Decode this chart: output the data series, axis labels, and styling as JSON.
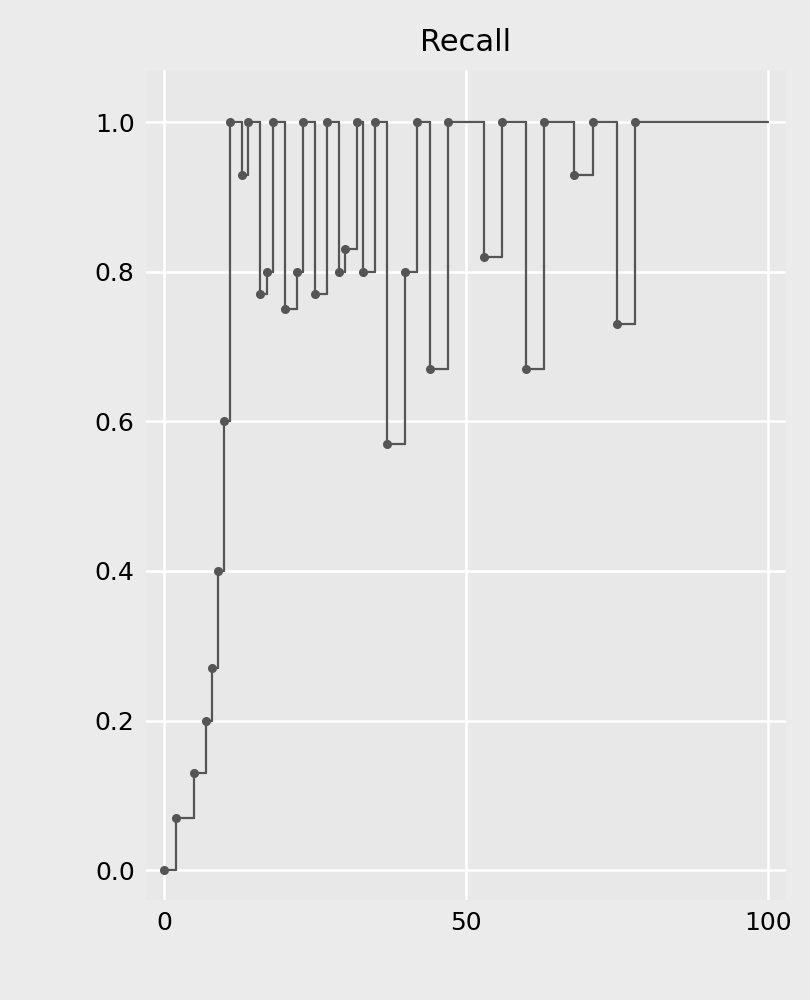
{
  "title": "Recall",
  "title_fontsize": 22,
  "xlim": [
    -3,
    103
  ],
  "ylim": [
    -0.04,
    1.07
  ],
  "xticks": [
    0,
    50,
    100
  ],
  "yticks": [
    0.0,
    0.2,
    0.4,
    0.6,
    0.8,
    1.0
  ],
  "plot_bg_color": "#e8e8e8",
  "fig_bg_color": "#ebebeb",
  "line_color": "#555555",
  "marker_color": "#555555",
  "grid_color": "#ffffff",
  "tick_label_fontsize": 18,
  "segments": [
    {
      "x": [
        0,
        2
      ],
      "y": [
        0.0,
        0.0
      ]
    },
    {
      "x": [
        2,
        2
      ],
      "y": [
        0.0,
        0.07
      ]
    },
    {
      "x": [
        2,
        5
      ],
      "y": [
        0.07,
        0.07
      ]
    },
    {
      "x": [
        5,
        5
      ],
      "y": [
        0.07,
        0.13
      ]
    },
    {
      "x": [
        5,
        7
      ],
      "y": [
        0.13,
        0.13
      ]
    },
    {
      "x": [
        7,
        7
      ],
      "y": [
        0.13,
        0.2
      ]
    },
    {
      "x": [
        7,
        8
      ],
      "y": [
        0.2,
        0.2
      ]
    },
    {
      "x": [
        8,
        8
      ],
      "y": [
        0.2,
        0.27
      ]
    },
    {
      "x": [
        8,
        9
      ],
      "y": [
        0.27,
        0.27
      ]
    },
    {
      "x": [
        9,
        9
      ],
      "y": [
        0.27,
        0.4
      ]
    },
    {
      "x": [
        9,
        10
      ],
      "y": [
        0.4,
        0.4
      ]
    },
    {
      "x": [
        10,
        10
      ],
      "y": [
        0.4,
        0.6
      ]
    },
    {
      "x": [
        10,
        11
      ],
      "y": [
        0.6,
        0.6
      ]
    },
    {
      "x": [
        11,
        11
      ],
      "y": [
        0.6,
        1.0
      ]
    },
    {
      "x": [
        11,
        13
      ],
      "y": [
        1.0,
        1.0
      ]
    },
    {
      "x": [
        13,
        13
      ],
      "y": [
        1.0,
        0.93
      ]
    },
    {
      "x": [
        13,
        14
      ],
      "y": [
        0.93,
        0.93
      ]
    },
    {
      "x": [
        14,
        14
      ],
      "y": [
        0.93,
        1.0
      ]
    },
    {
      "x": [
        14,
        16
      ],
      "y": [
        1.0,
        1.0
      ]
    },
    {
      "x": [
        16,
        16
      ],
      "y": [
        1.0,
        0.77
      ]
    },
    {
      "x": [
        16,
        17
      ],
      "y": [
        0.77,
        0.77
      ]
    },
    {
      "x": [
        17,
        17
      ],
      "y": [
        0.77,
        0.8
      ]
    },
    {
      "x": [
        17,
        18
      ],
      "y": [
        0.8,
        0.8
      ]
    },
    {
      "x": [
        18,
        18
      ],
      "y": [
        0.8,
        1.0
      ]
    },
    {
      "x": [
        18,
        20
      ],
      "y": [
        1.0,
        1.0
      ]
    },
    {
      "x": [
        20,
        20
      ],
      "y": [
        1.0,
        0.75
      ]
    },
    {
      "x": [
        20,
        22
      ],
      "y": [
        0.75,
        0.75
      ]
    },
    {
      "x": [
        22,
        22
      ],
      "y": [
        0.75,
        0.8
      ]
    },
    {
      "x": [
        22,
        23
      ],
      "y": [
        0.8,
        0.8
      ]
    },
    {
      "x": [
        23,
        23
      ],
      "y": [
        0.8,
        1.0
      ]
    },
    {
      "x": [
        23,
        25
      ],
      "y": [
        1.0,
        1.0
      ]
    },
    {
      "x": [
        25,
        25
      ],
      "y": [
        1.0,
        0.77
      ]
    },
    {
      "x": [
        25,
        27
      ],
      "y": [
        0.77,
        0.77
      ]
    },
    {
      "x": [
        27,
        27
      ],
      "y": [
        0.77,
        1.0
      ]
    },
    {
      "x": [
        27,
        29
      ],
      "y": [
        1.0,
        1.0
      ]
    },
    {
      "x": [
        29,
        29
      ],
      "y": [
        1.0,
        0.8
      ]
    },
    {
      "x": [
        29,
        30
      ],
      "y": [
        0.8,
        0.8
      ]
    },
    {
      "x": [
        30,
        30
      ],
      "y": [
        0.8,
        0.83
      ]
    },
    {
      "x": [
        30,
        32
      ],
      "y": [
        0.83,
        0.83
      ]
    },
    {
      "x": [
        32,
        32
      ],
      "y": [
        0.83,
        1.0
      ]
    },
    {
      "x": [
        32,
        33
      ],
      "y": [
        1.0,
        1.0
      ]
    },
    {
      "x": [
        33,
        33
      ],
      "y": [
        1.0,
        0.8
      ]
    },
    {
      "x": [
        33,
        35
      ],
      "y": [
        0.8,
        0.8
      ]
    },
    {
      "x": [
        35,
        35
      ],
      "y": [
        0.8,
        1.0
      ]
    },
    {
      "x": [
        35,
        37
      ],
      "y": [
        1.0,
        1.0
      ]
    },
    {
      "x": [
        37,
        37
      ],
      "y": [
        1.0,
        0.57
      ]
    },
    {
      "x": [
        37,
        40
      ],
      "y": [
        0.57,
        0.57
      ]
    },
    {
      "x": [
        40,
        40
      ],
      "y": [
        0.57,
        0.8
      ]
    },
    {
      "x": [
        40,
        42
      ],
      "y": [
        0.8,
        0.8
      ]
    },
    {
      "x": [
        42,
        42
      ],
      "y": [
        0.8,
        1.0
      ]
    },
    {
      "x": [
        42,
        44
      ],
      "y": [
        1.0,
        1.0
      ]
    },
    {
      "x": [
        44,
        44
      ],
      "y": [
        1.0,
        0.67
      ]
    },
    {
      "x": [
        44,
        47
      ],
      "y": [
        0.67,
        0.67
      ]
    },
    {
      "x": [
        47,
        47
      ],
      "y": [
        0.67,
        1.0
      ]
    },
    {
      "x": [
        47,
        53
      ],
      "y": [
        1.0,
        1.0
      ]
    },
    {
      "x": [
        53,
        53
      ],
      "y": [
        1.0,
        0.82
      ]
    },
    {
      "x": [
        53,
        56
      ],
      "y": [
        0.82,
        0.82
      ]
    },
    {
      "x": [
        56,
        56
      ],
      "y": [
        0.82,
        1.0
      ]
    },
    {
      "x": [
        56,
        60
      ],
      "y": [
        1.0,
        1.0
      ]
    },
    {
      "x": [
        60,
        60
      ],
      "y": [
        1.0,
        0.67
      ]
    },
    {
      "x": [
        60,
        63
      ],
      "y": [
        0.67,
        0.67
      ]
    },
    {
      "x": [
        63,
        63
      ],
      "y": [
        0.67,
        1.0
      ]
    },
    {
      "x": [
        63,
        68
      ],
      "y": [
        1.0,
        1.0
      ]
    },
    {
      "x": [
        68,
        68
      ],
      "y": [
        1.0,
        0.93
      ]
    },
    {
      "x": [
        68,
        71
      ],
      "y": [
        0.93,
        0.93
      ]
    },
    {
      "x": [
        71,
        71
      ],
      "y": [
        0.93,
        1.0
      ]
    },
    {
      "x": [
        71,
        75
      ],
      "y": [
        1.0,
        1.0
      ]
    },
    {
      "x": [
        75,
        75
      ],
      "y": [
        1.0,
        0.73
      ]
    },
    {
      "x": [
        75,
        78
      ],
      "y": [
        0.73,
        0.73
      ]
    },
    {
      "x": [
        78,
        78
      ],
      "y": [
        0.73,
        1.0
      ]
    },
    {
      "x": [
        78,
        100
      ],
      "y": [
        1.0,
        1.0
      ]
    }
  ],
  "dots": [
    [
      0,
      0.0
    ],
    [
      2,
      0.07
    ],
    [
      5,
      0.13
    ],
    [
      7,
      0.2
    ],
    [
      8,
      0.27
    ],
    [
      9,
      0.4
    ],
    [
      10,
      0.6
    ],
    [
      11,
      1.0
    ],
    [
      13,
      0.93
    ],
    [
      14,
      1.0
    ],
    [
      16,
      0.77
    ],
    [
      17,
      0.8
    ],
    [
      18,
      1.0
    ],
    [
      20,
      0.75
    ],
    [
      22,
      0.8
    ],
    [
      23,
      1.0
    ],
    [
      25,
      0.77
    ],
    [
      27,
      1.0
    ],
    [
      29,
      0.8
    ],
    [
      30,
      0.83
    ],
    [
      32,
      1.0
    ],
    [
      33,
      0.8
    ],
    [
      35,
      1.0
    ],
    [
      37,
      0.57
    ],
    [
      40,
      0.8
    ],
    [
      42,
      1.0
    ],
    [
      44,
      0.67
    ],
    [
      47,
      1.0
    ],
    [
      53,
      0.82
    ],
    [
      56,
      1.0
    ],
    [
      60,
      0.67
    ],
    [
      63,
      1.0
    ],
    [
      68,
      0.93
    ],
    [
      71,
      1.0
    ],
    [
      75,
      0.73
    ],
    [
      78,
      1.0
    ]
  ]
}
